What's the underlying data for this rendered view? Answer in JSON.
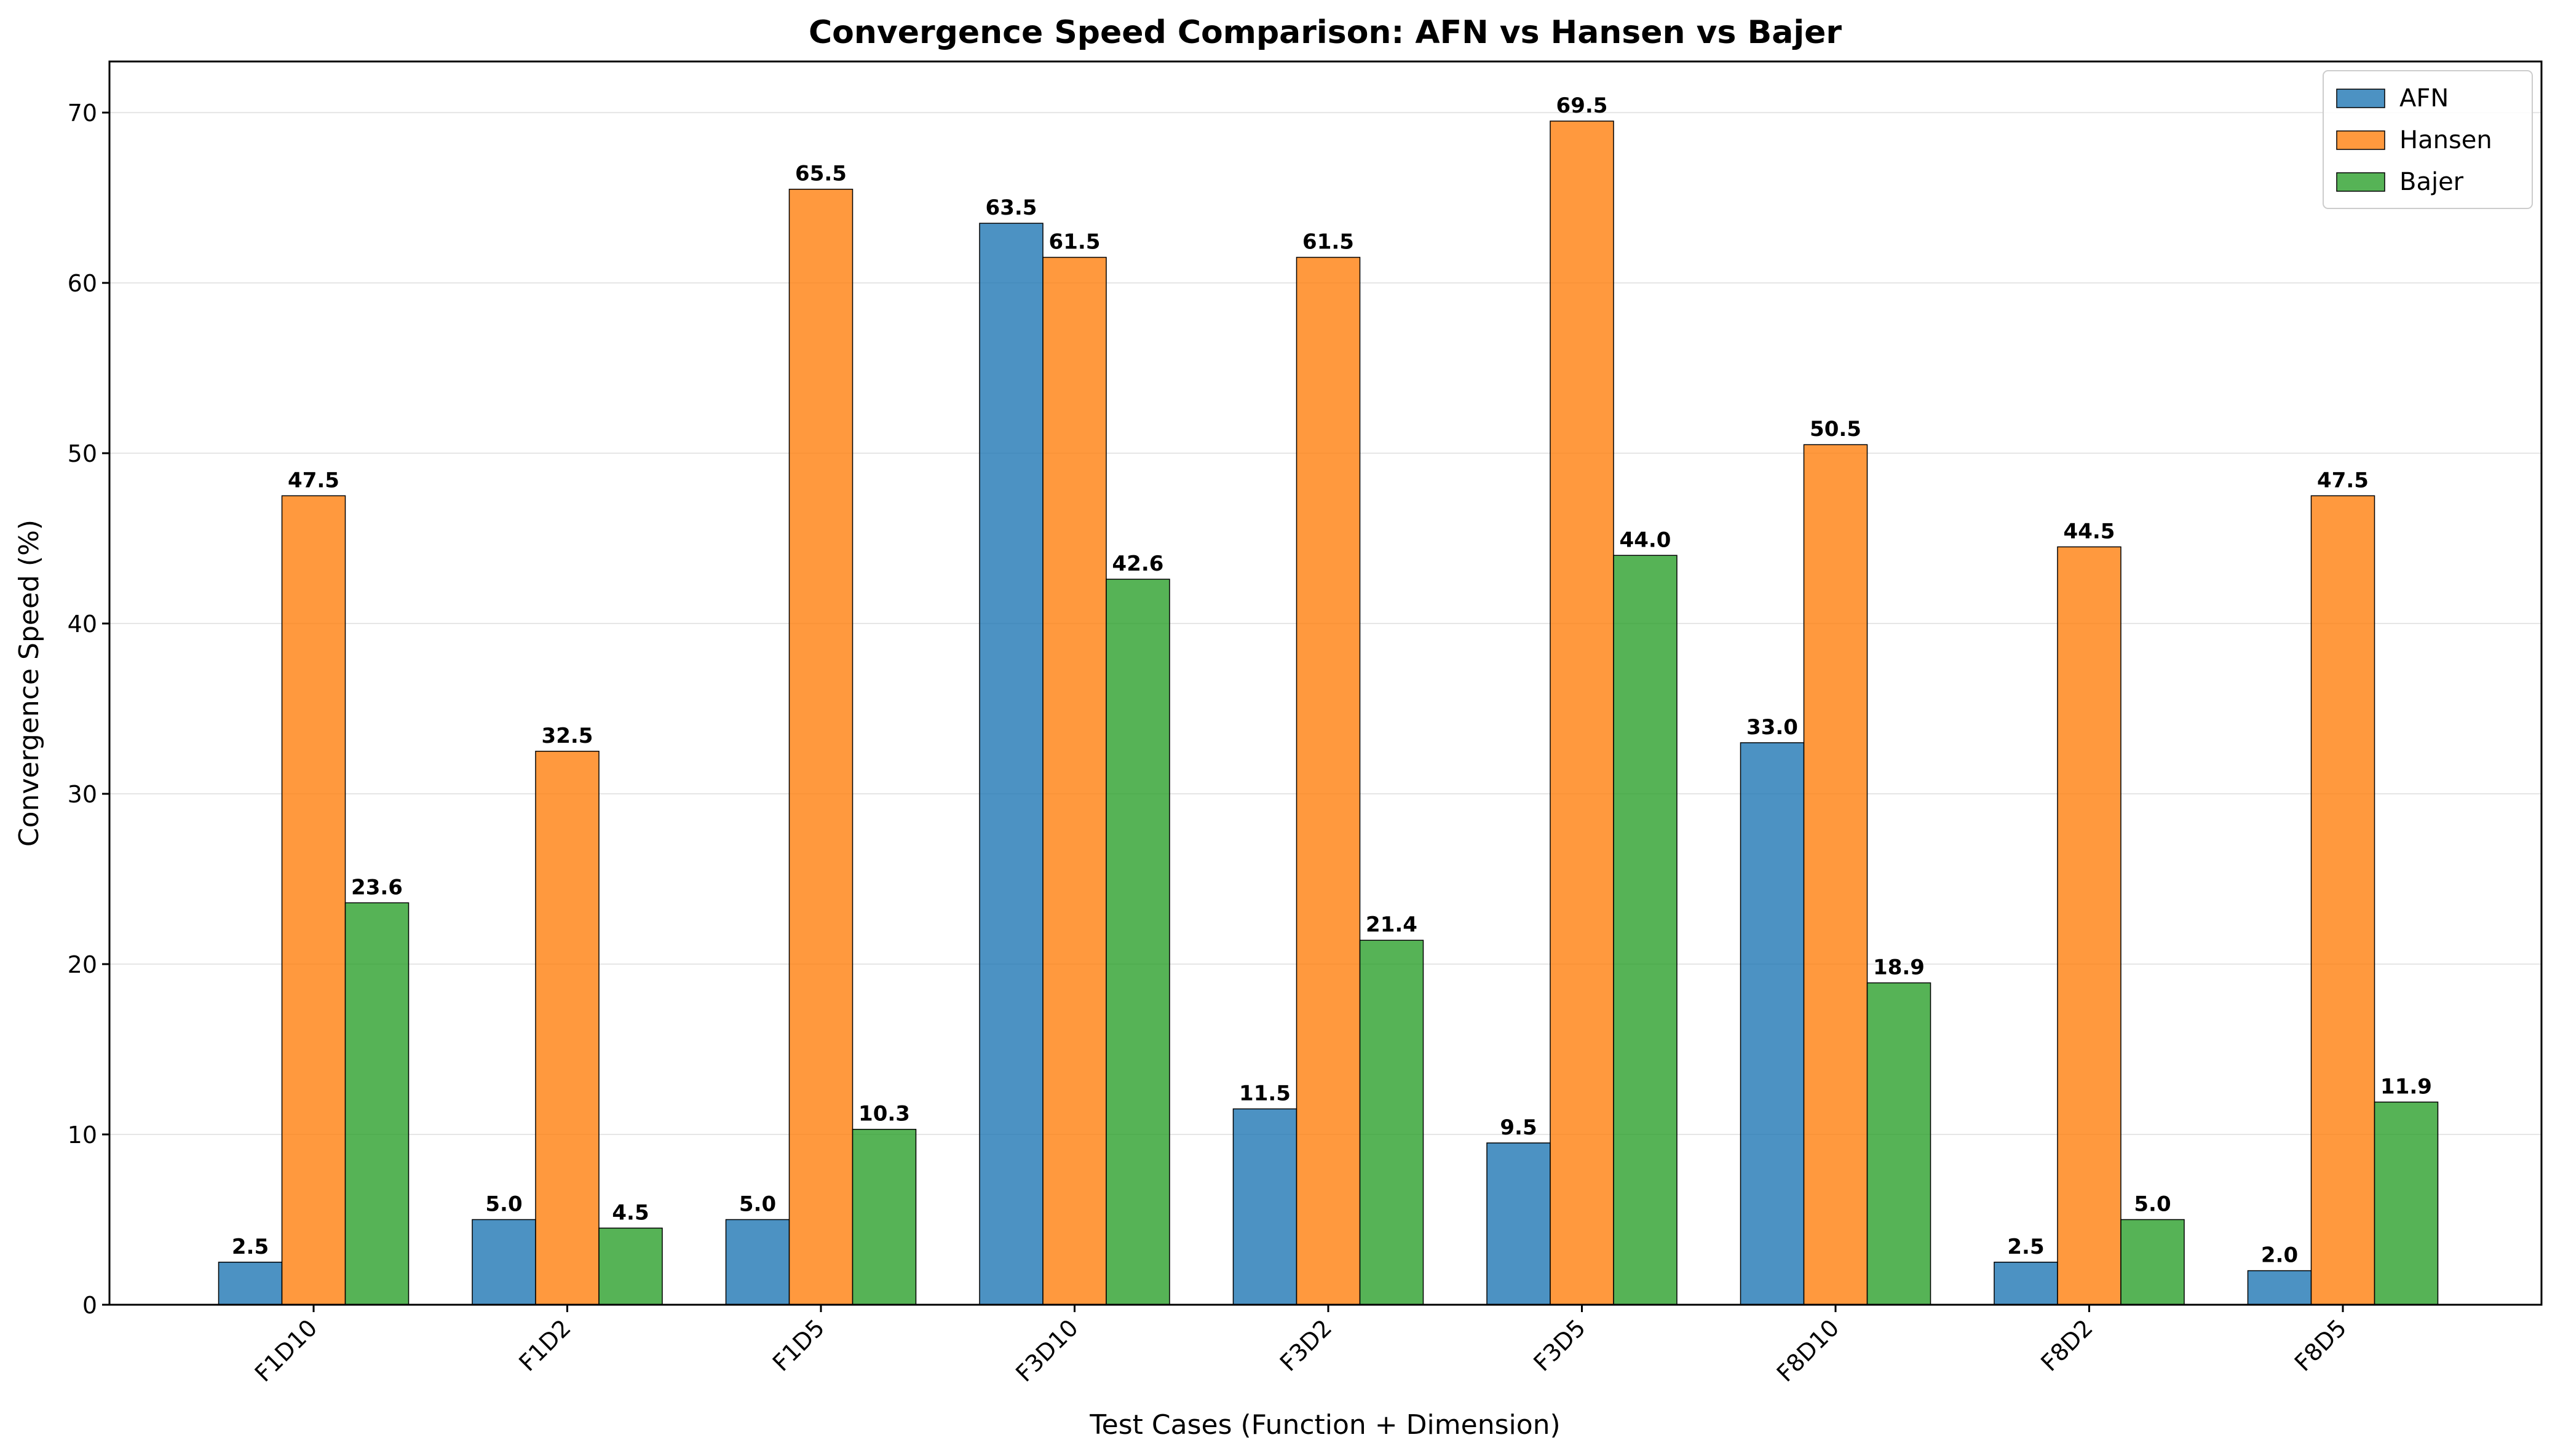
{
  "chart_data": {
    "type": "bar",
    "title": "Convergence Speed Comparison: AFN vs Hansen vs Bajer",
    "xlabel": "Test Cases (Function + Dimension)",
    "ylabel": "Convergence Speed (%)",
    "categories": [
      "F1D10",
      "F1D2",
      "F1D5",
      "F3D10",
      "F3D2",
      "F3D5",
      "F8D10",
      "F8D2",
      "F8D5"
    ],
    "series": [
      {
        "name": "AFN",
        "color": "#1f77b4",
        "values": [
          2.5,
          5.0,
          5.0,
          63.5,
          11.5,
          9.5,
          33.0,
          2.5,
          2.0
        ]
      },
      {
        "name": "Hansen",
        "color": "#ff7f0e",
        "values": [
          47.5,
          32.5,
          65.5,
          61.5,
          61.5,
          69.5,
          50.5,
          44.5,
          47.5
        ]
      },
      {
        "name": "Bajer",
        "color": "#2ca02c",
        "values": [
          23.6,
          4.5,
          10.3,
          42.6,
          21.4,
          44.0,
          18.9,
          5.0,
          11.9
        ]
      }
    ],
    "ylim": [
      0,
      73
    ],
    "yticks": [
      0,
      10,
      20,
      30,
      40,
      50,
      60,
      70
    ],
    "grid": "y",
    "legend": "top-right",
    "data_labels": true
  }
}
